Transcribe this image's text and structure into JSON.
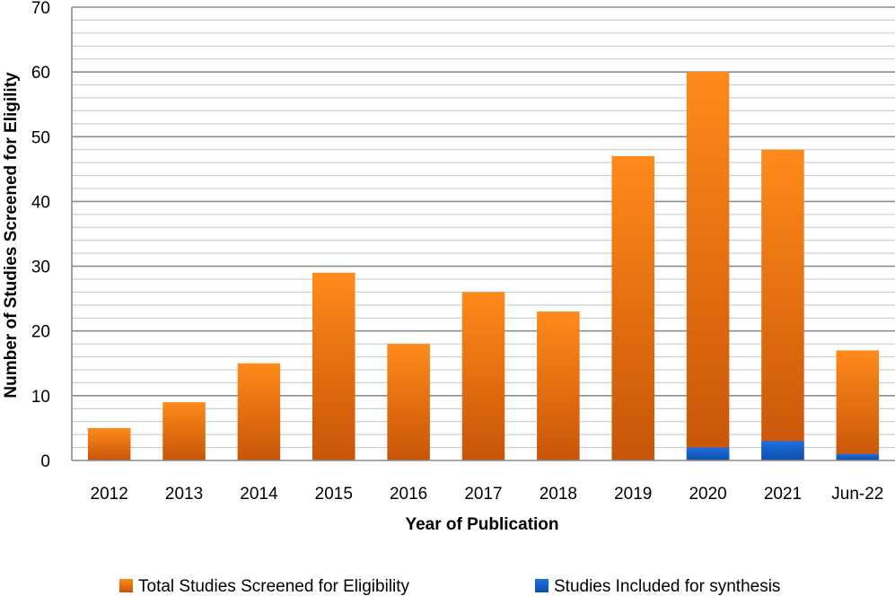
{
  "chart_data": {
    "type": "bar",
    "stacked": true,
    "title": "",
    "xlabel": "Year of Publication",
    "ylabel": "Number of Studies Screened for Eligility",
    "ylim": [
      0,
      70
    ],
    "yticks": [
      0,
      10,
      20,
      30,
      40,
      50,
      60,
      70
    ],
    "grid": true,
    "legend_position": "bottom",
    "categories": [
      "2012",
      "2013",
      "2014",
      "2015",
      "2016",
      "2017",
      "2018",
      "2019",
      "2020",
      "2021",
      "Jun-22"
    ],
    "series": [
      {
        "name": "Total Studies Screened for Eligibility",
        "color": "#F07A10",
        "values": [
          5,
          9,
          15,
          29,
          18,
          26,
          23,
          47,
          60,
          48,
          17
        ]
      },
      {
        "name": "Studies Included for synthesis",
        "color": "#1560C8",
        "values": [
          0,
          0,
          0,
          0,
          0,
          0,
          0,
          0,
          2,
          3,
          1
        ]
      }
    ]
  }
}
